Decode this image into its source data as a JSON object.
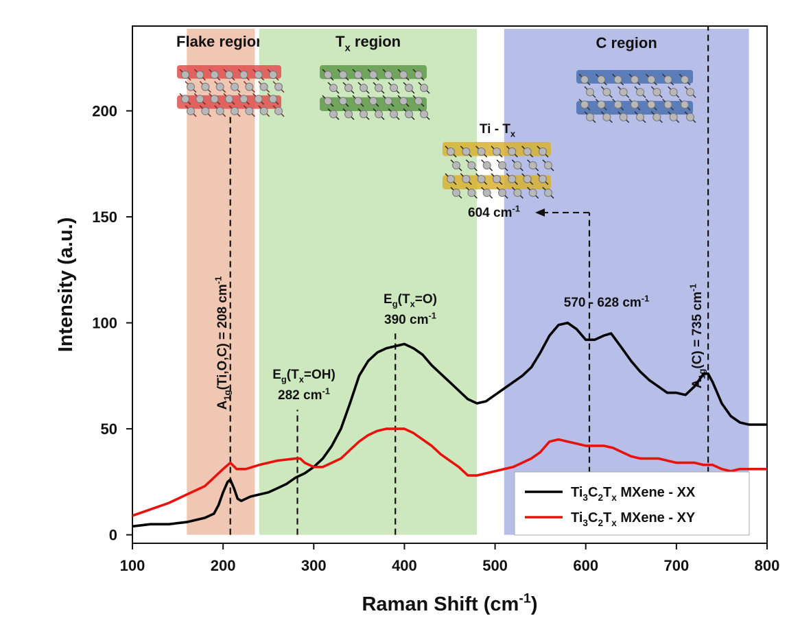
{
  "chart_data": {
    "type": "line",
    "x_label": [
      {
        "text": "Raman Shift (cm"
      },
      {
        "sup": "-1"
      },
      {
        "text": ")"
      }
    ],
    "y_label": [
      {
        "text": "Intensity (a.u.)"
      }
    ],
    "xlim": [
      100,
      800
    ],
    "ylim": [
      -4,
      240
    ],
    "xticks": [
      100,
      200,
      300,
      400,
      500,
      600,
      700,
      800
    ],
    "yticks": [
      0,
      50,
      100,
      150,
      200
    ],
    "legend": "lower right",
    "regions": [
      {
        "name": [
          {
            "text": "Flake region"
          }
        ],
        "x": [
          160,
          235
        ],
        "color": "#efc7b3"
      },
      {
        "name": [
          {
            "text": "T"
          },
          {
            "sub": "x"
          },
          {
            "text": " region"
          }
        ],
        "x": [
          240,
          480
        ],
        "color": "#cde8bf"
      },
      {
        "name": [
          {
            "text": "C region"
          }
        ],
        "x": [
          510,
          780
        ],
        "color": "#b7bfe8"
      }
    ],
    "series": [
      {
        "name": [
          {
            "text": "Ti"
          },
          {
            "sub": "3"
          },
          {
            "text": "C"
          },
          {
            "sub": "2"
          },
          {
            "text": "T"
          },
          {
            "sub": "x"
          },
          {
            "text": " MXene - XX"
          }
        ],
        "color": "#000000",
        "x": [
          100,
          120,
          140,
          160,
          170,
          180,
          190,
          195,
          200,
          205,
          208,
          212,
          216,
          220,
          230,
          240,
          250,
          260,
          270,
          280,
          290,
          300,
          310,
          320,
          330,
          340,
          350,
          360,
          370,
          380,
          390,
          400,
          410,
          420,
          430,
          440,
          450,
          460,
          470,
          480,
          490,
          500,
          510,
          520,
          530,
          540,
          550,
          560,
          570,
          580,
          590,
          600,
          610,
          620,
          628,
          640,
          650,
          660,
          670,
          680,
          690,
          700,
          710,
          720,
          730,
          735,
          740,
          750,
          760,
          770,
          780,
          800
        ],
        "values": [
          4,
          5,
          5,
          6,
          7,
          8,
          10,
          14,
          20,
          25,
          26,
          22,
          17,
          16,
          18,
          19,
          20,
          22,
          24,
          27,
          29,
          32,
          36,
          42,
          50,
          62,
          75,
          82,
          86,
          88,
          89,
          90,
          88,
          85,
          80,
          76,
          72,
          68,
          64,
          62,
          63,
          66,
          69,
          72,
          75,
          79,
          86,
          94,
          99,
          100,
          97,
          92,
          92,
          94,
          95,
          88,
          82,
          77,
          73,
          70,
          67,
          67,
          66,
          70,
          76,
          76,
          72,
          62,
          56,
          53,
          52,
          52
        ]
      },
      {
        "name": [
          {
            "text": "Ti"
          },
          {
            "sub": "3"
          },
          {
            "text": "C"
          },
          {
            "sub": "2"
          },
          {
            "text": "T"
          },
          {
            "sub": "x"
          },
          {
            "text": " MXene - XY"
          }
        ],
        "color": "#e8120c",
        "x": [
          100,
          120,
          140,
          160,
          180,
          190,
          200,
          208,
          215,
          225,
          240,
          260,
          280,
          285,
          290,
          300,
          310,
          320,
          330,
          340,
          350,
          360,
          370,
          380,
          390,
          400,
          410,
          420,
          430,
          440,
          450,
          460,
          470,
          480,
          490,
          500,
          510,
          520,
          530,
          540,
          550,
          560,
          570,
          580,
          590,
          600,
          610,
          620,
          630,
          640,
          650,
          660,
          670,
          680,
          690,
          700,
          710,
          720,
          730,
          740,
          750,
          760,
          770,
          780,
          800
        ],
        "values": [
          9,
          12,
          15,
          19,
          23,
          27,
          31,
          34,
          31,
          31,
          33,
          35,
          36,
          36,
          34,
          32,
          32,
          34,
          36,
          40,
          44,
          47,
          49,
          50,
          50,
          50,
          48,
          45,
          42,
          38,
          35,
          32,
          28,
          28,
          29,
          30,
          31,
          32,
          34,
          36,
          39,
          44,
          45,
          44,
          43,
          42,
          42,
          42,
          41,
          39,
          37,
          36,
          36,
          36,
          35,
          34,
          34,
          34,
          33,
          33,
          31,
          30,
          31,
          31,
          31
        ]
      }
    ],
    "annotations": [
      {
        "x": 208,
        "lines": [
          [
            {
              "text": "A"
            },
            {
              "sub": "1g"
            },
            {
              "text": "(Ti,O,C) = 208 cm"
            },
            {
              "sup": "-1"
            }
          ]
        ]
      },
      {
        "x": 282,
        "lines": [
          [
            {
              "text": "E"
            },
            {
              "sub": "g"
            },
            {
              "text": "(T"
            },
            {
              "sub": "x"
            },
            {
              "text": "=OH)"
            }
          ],
          [
            {
              "text": "282 cm"
            },
            {
              "sup": "-1"
            }
          ]
        ]
      },
      {
        "x": 390,
        "lines": [
          [
            {
              "text": "E"
            },
            {
              "sub": "g"
            },
            {
              "text": "(T"
            },
            {
              "sub": "x"
            },
            {
              "text": "=O)"
            }
          ],
          [
            {
              "text": "390 cm"
            },
            {
              "sup": "-1"
            }
          ]
        ]
      },
      {
        "lines": [
          [
            {
              "text": "570 - 628 cm"
            },
            {
              "sup": "-1"
            }
          ]
        ]
      },
      {
        "x": 604,
        "lines": [
          [
            {
              "text": "604 cm"
            },
            {
              "sup": "-1"
            }
          ]
        ]
      },
      {
        "lines": [
          [
            {
              "text": "Ti - T"
            },
            {
              "sub": "x"
            }
          ]
        ]
      },
      {
        "x": 735,
        "lines": [
          [
            {
              "text": "A"
            },
            {
              "sub": "1g"
            },
            {
              "text": "(C) = 735 cm"
            },
            {
              "sup": "-1"
            }
          ]
        ]
      }
    ]
  }
}
